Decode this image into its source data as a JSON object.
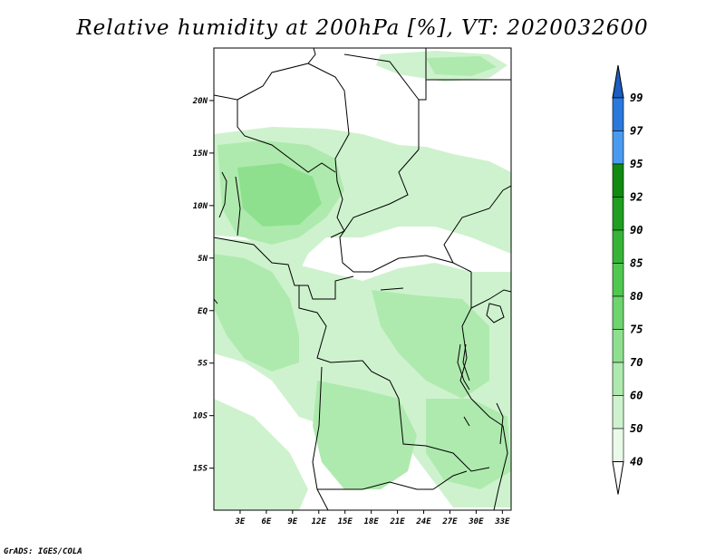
{
  "title": "Relative humidity at 200hPa [%], VT: 2020032600",
  "footer": "GrADS: IGES/COLA",
  "map": {
    "lon_range": [
      0,
      34
    ],
    "lat_range": [
      -19,
      25
    ],
    "lat_ticks": [
      {
        "value": 20,
        "label": "20N"
      },
      {
        "value": 15,
        "label": "15N"
      },
      {
        "value": 10,
        "label": "10N"
      },
      {
        "value": 5,
        "label": "5N"
      },
      {
        "value": 0,
        "label": "EQ"
      },
      {
        "value": -5,
        "label": "5S"
      },
      {
        "value": -10,
        "label": "10S"
      },
      {
        "value": -15,
        "label": "15S"
      }
    ],
    "lon_ticks": [
      {
        "value": 3,
        "label": "3E"
      },
      {
        "value": 6,
        "label": "6E"
      },
      {
        "value": 9,
        "label": "9E"
      },
      {
        "value": 12,
        "label": "12E"
      },
      {
        "value": 15,
        "label": "15E"
      },
      {
        "value": 18,
        "label": "18E"
      },
      {
        "value": 21,
        "label": "21E"
      },
      {
        "value": 24,
        "label": "24E"
      },
      {
        "value": 27,
        "label": "27E"
      },
      {
        "value": 30,
        "label": "30E"
      },
      {
        "value": 33,
        "label": "33E"
      }
    ]
  },
  "colorbar": {
    "levels": [
      {
        "label": "99",
        "color": "#2060c8"
      },
      {
        "label": "97",
        "color": "#2a78dc"
      },
      {
        "label": "95",
        "color": "#4a9bf0"
      },
      {
        "label": "92",
        "color": "#118a11"
      },
      {
        "label": "90",
        "color": "#1f9f1f"
      },
      {
        "label": "85",
        "color": "#37b437"
      },
      {
        "label": "80",
        "color": "#50c850"
      },
      {
        "label": "75",
        "color": "#6ed46e"
      },
      {
        "label": "70",
        "color": "#8ee08e"
      },
      {
        "label": "60",
        "color": "#aeeaae"
      },
      {
        "label": "50",
        "color": "#cef2ce"
      },
      {
        "label": "40",
        "color": "#eafaea"
      }
    ],
    "top_arrow_color": "#1a5ec0",
    "bottom_arrow_color": "#ffffff"
  }
}
